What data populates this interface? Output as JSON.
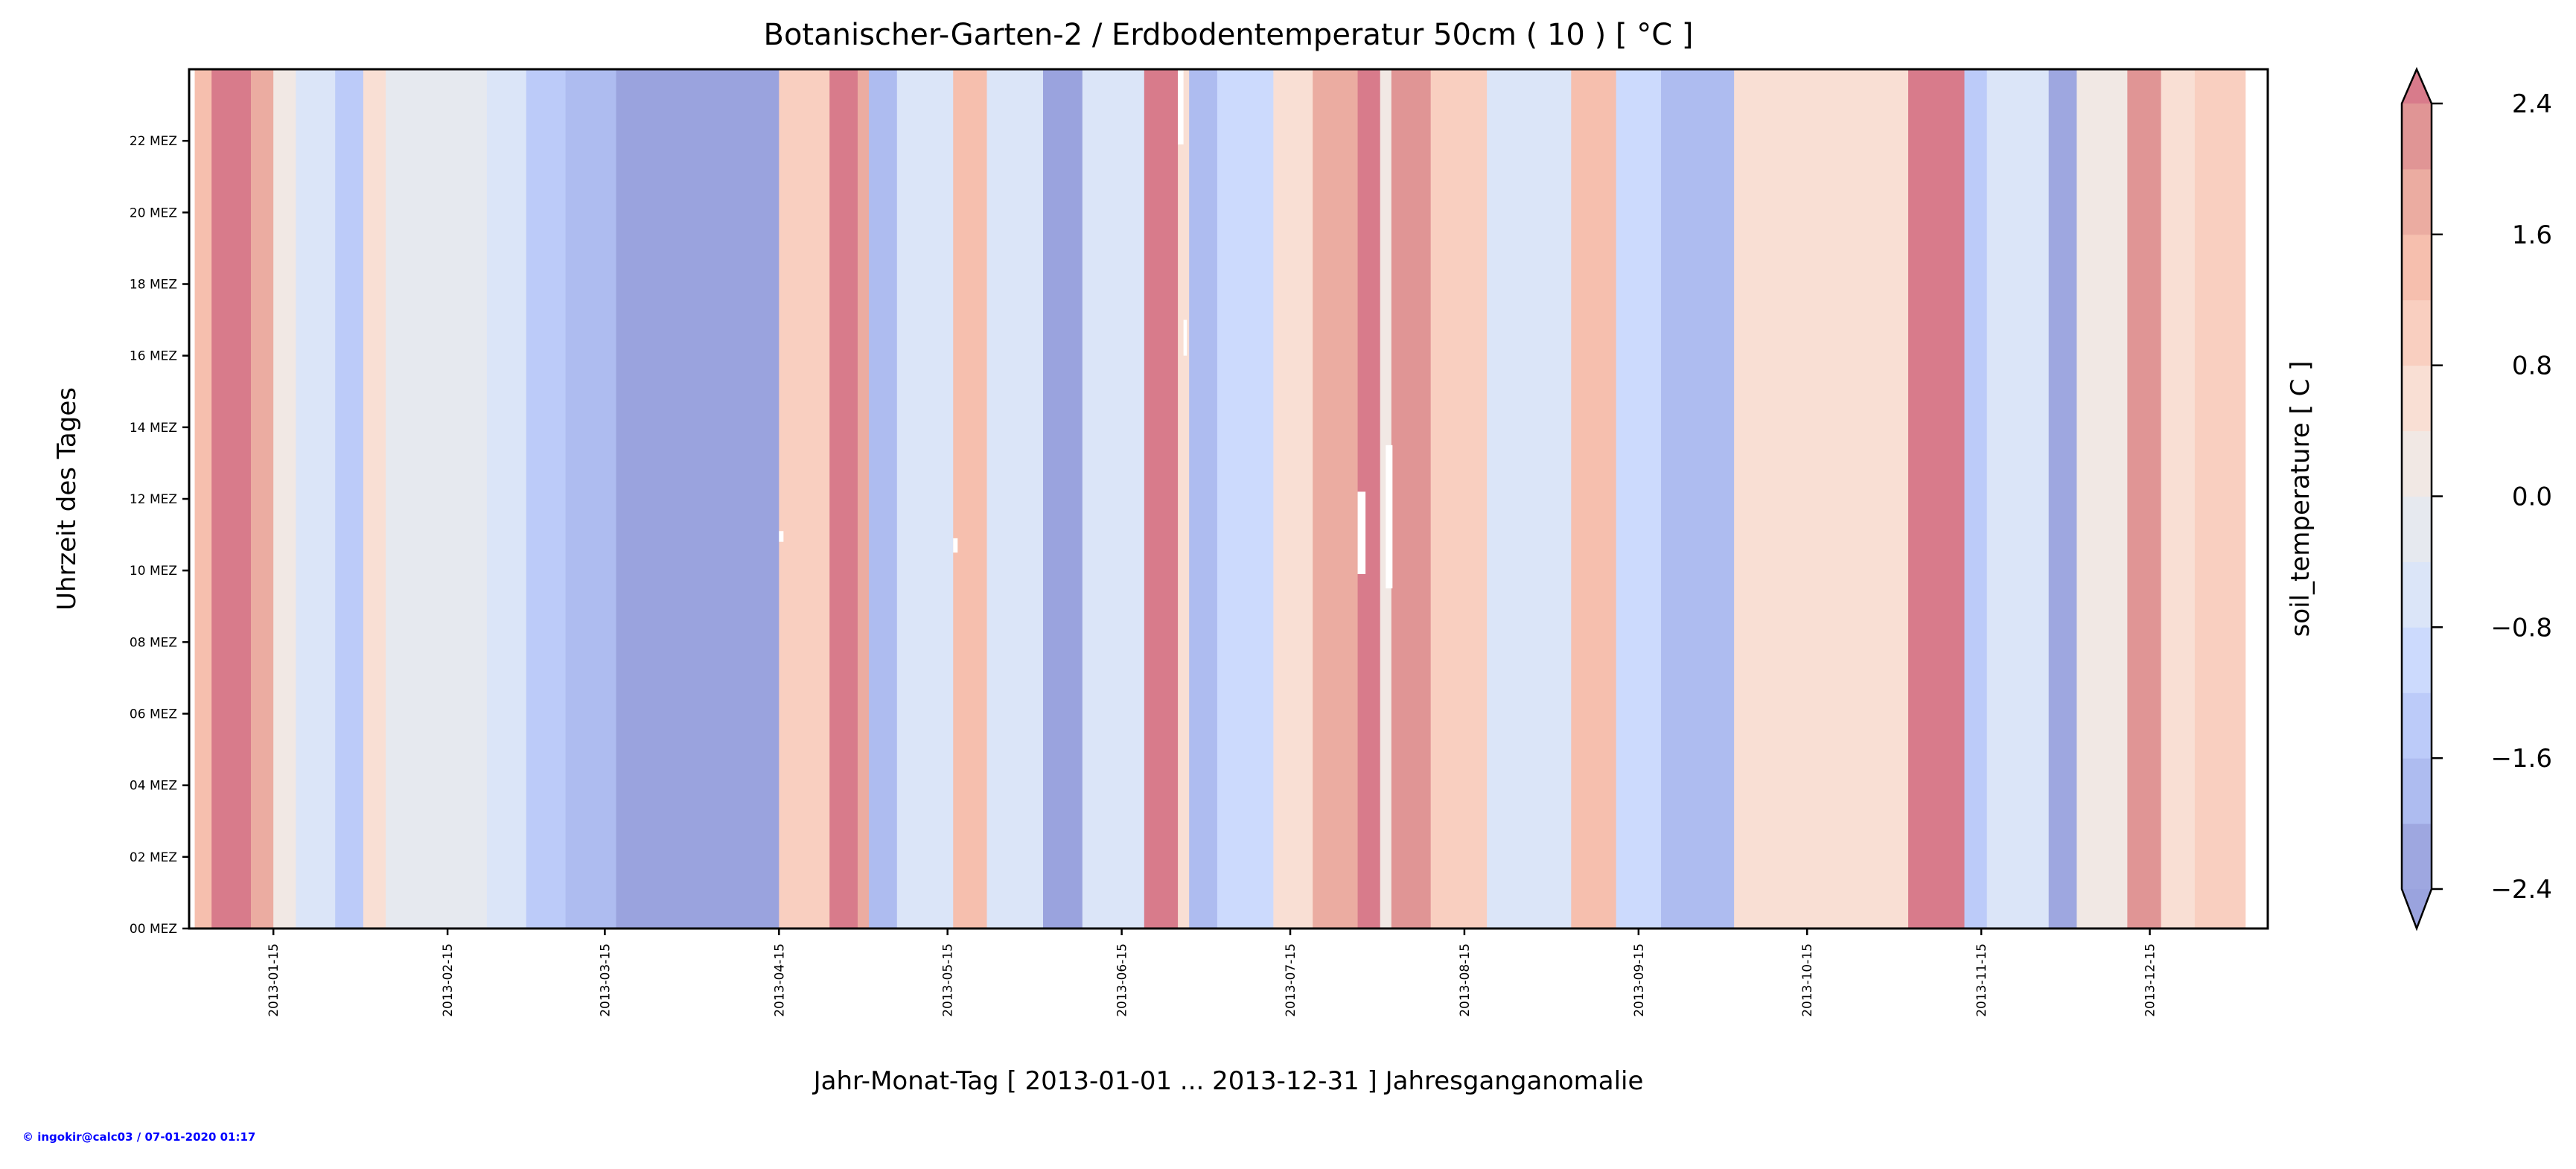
{
  "chart_data": {
    "type": "heatmap",
    "title": "Botanischer-Garten-2 / Erdbodentemperatur 50cm ( 10 ) [ °C ]",
    "xlabel": "Jahr-Monat-Tag [ 2013-01-01 ... 2013-12-31 ] Jahresganganomalie",
    "ylabel": "Uhrzeit des Tages",
    "colorbar_label": "soil_temperature [ C ]",
    "x_unit": "day of year (0 = 2013-01-01)",
    "xlim": [
      -1,
      369
    ],
    "ylim": [
      0,
      24
    ],
    "x_ticks": [
      {
        "day": 14,
        "label": "2013-01-15"
      },
      {
        "day": 45,
        "label": "2013-02-15"
      },
      {
        "day": 73,
        "label": "2013-03-15"
      },
      {
        "day": 104,
        "label": "2013-04-15"
      },
      {
        "day": 134,
        "label": "2013-05-15"
      },
      {
        "day": 165,
        "label": "2013-06-15"
      },
      {
        "day": 195,
        "label": "2013-07-15"
      },
      {
        "day": 226,
        "label": "2013-08-15"
      },
      {
        "day": 257,
        "label": "2013-09-15"
      },
      {
        "day": 287,
        "label": "2013-10-15"
      },
      {
        "day": 318,
        "label": "2013-11-15"
      },
      {
        "day": 348,
        "label": "2013-12-15"
      }
    ],
    "y_ticks": [
      {
        "hour": 0,
        "label": "00 MEZ"
      },
      {
        "hour": 2,
        "label": "02 MEZ"
      },
      {
        "hour": 4,
        "label": "04 MEZ"
      },
      {
        "hour": 6,
        "label": "06 MEZ"
      },
      {
        "hour": 8,
        "label": "08 MEZ"
      },
      {
        "hour": 10,
        "label": "10 MEZ"
      },
      {
        "hour": 12,
        "label": "12 MEZ"
      },
      {
        "hour": 14,
        "label": "14 MEZ"
      },
      {
        "hour": 16,
        "label": "16 MEZ"
      },
      {
        "hour": 18,
        "label": "18 MEZ"
      },
      {
        "hour": 20,
        "label": "20 MEZ"
      },
      {
        "hour": 22,
        "label": "22 MEZ"
      }
    ],
    "levels": [
      -2.4,
      -2.0,
      -1.6,
      -1.2,
      -0.8,
      -0.4,
      0.0,
      0.4,
      0.8,
      1.2,
      1.6,
      2.0,
      2.4
    ],
    "level_colors": [
      "#9ea7e0",
      "#aebcf0",
      "#bccbf9",
      "#ccdafd",
      "#dbe5f8",
      "#e6e9ef",
      "#f1e8e4",
      "#f9dfd4",
      "#f9cfc0",
      "#f6bfae",
      "#ebaca1",
      "#e09595"
    ],
    "under_color": "#9aa3de",
    "over_color": "#d87b8b",
    "colorbar_ticks": [
      {
        "value": 2.4,
        "label": "2.4"
      },
      {
        "value": 1.6,
        "label": "1.6"
      },
      {
        "value": 0.8,
        "label": "0.8"
      },
      {
        "value": 0.0,
        "label": "0.0"
      },
      {
        "value": -0.8,
        "label": "−0.8"
      },
      {
        "value": -1.6,
        "label": "−1.6"
      },
      {
        "value": -2.4,
        "label": "−2.4"
      }
    ],
    "segments": [
      [
        0,
        3,
        1.2
      ],
      [
        3,
        10,
        2.5
      ],
      [
        10,
        14,
        1.7
      ],
      [
        14,
        18,
        0.1
      ],
      [
        18,
        25,
        -0.6
      ],
      [
        25,
        30,
        -1.3
      ],
      [
        30,
        34,
        0.6
      ],
      [
        34,
        52,
        -0.2
      ],
      [
        52,
        59,
        -0.6
      ],
      [
        59,
        66,
        -1.4
      ],
      [
        66,
        75,
        -1.8
      ],
      [
        75,
        104,
        -2.5
      ],
      [
        104,
        113,
        0.9
      ],
      [
        113,
        118,
        2.5
      ],
      [
        118,
        120,
        1.7
      ],
      [
        120,
        125,
        -1.8
      ],
      [
        125,
        135,
        -0.6
      ],
      [
        135,
        141,
        1.3
      ],
      [
        141,
        151,
        -0.5
      ],
      [
        151,
        158,
        -2.5
      ],
      [
        158,
        169,
        -0.6
      ],
      [
        169,
        175,
        2.5
      ],
      [
        175,
        177,
        0.5
      ],
      [
        177,
        182,
        -1.7
      ],
      [
        182,
        192,
        -0.9
      ],
      [
        192,
        199,
        0.6
      ],
      [
        199,
        207,
        1.7
      ],
      [
        207,
        211,
        2.5
      ],
      [
        211,
        213,
        0.1
      ],
      [
        213,
        220,
        2.1
      ],
      [
        220,
        230,
        1.0
      ],
      [
        230,
        245,
        -0.5
      ],
      [
        245,
        253,
        1.3
      ],
      [
        253,
        261,
        -0.9
      ],
      [
        261,
        274,
        -1.9
      ],
      [
        274,
        283,
        0.5
      ],
      [
        283,
        305,
        0.7
      ],
      [
        305,
        315,
        2.5
      ],
      [
        315,
        319,
        -1.3
      ],
      [
        319,
        330,
        -0.6
      ],
      [
        330,
        335,
        -2.1
      ],
      [
        335,
        344,
        0.2
      ],
      [
        344,
        350,
        2.1
      ],
      [
        350,
        356,
        0.6
      ],
      [
        356,
        365,
        1.0
      ]
    ],
    "missing": [
      {
        "day0": 175,
        "day1": 176,
        "h0": 21.9,
        "h1": 24
      },
      {
        "day0": 176,
        "day1": 176.6,
        "h0": 16,
        "h1": 17
      },
      {
        "day0": 207,
        "day1": 208.4,
        "h0": 9.9,
        "h1": 12.2
      },
      {
        "day0": 212,
        "day1": 213.2,
        "h0": 9.5,
        "h1": 13.5
      },
      {
        "day0": 104,
        "day1": 104.8,
        "h0": 10.8,
        "h1": 11.1
      },
      {
        "day0": 135,
        "day1": 135.8,
        "h0": 10.5,
        "h1": 10.9
      }
    ]
  },
  "footer": "© ingokir@calc03 / 07-01-2020 01:17"
}
